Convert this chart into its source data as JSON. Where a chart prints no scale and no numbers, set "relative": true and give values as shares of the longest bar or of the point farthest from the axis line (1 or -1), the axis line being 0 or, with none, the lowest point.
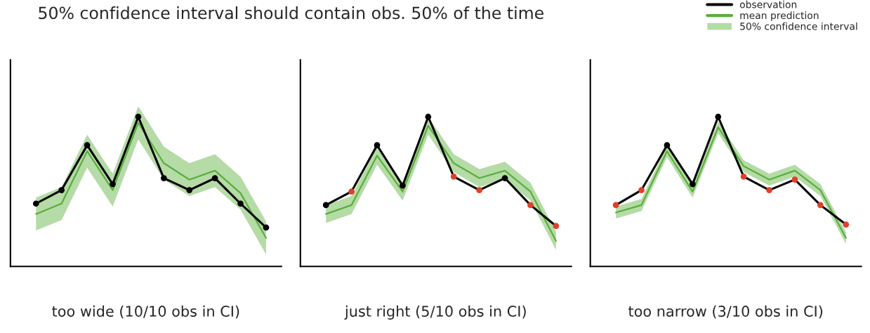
{
  "chart_data": [
    {
      "type": "line",
      "title": "50% confidence interval should contain obs. 50% of the time",
      "xlabel": "too wide (10/10 obs in CI)",
      "relative": true,
      "tick_labels": false,
      "grid": false,
      "categories": [
        null,
        null,
        null,
        null,
        null,
        null,
        null,
        null,
        null,
        null
      ],
      "series": [
        {
          "color": "#5aae3c",
          "values": [
            0.35,
            0.42,
            0.77,
            0.51,
            0.96,
            0.69,
            0.58,
            0.64,
            0.49,
            0.19
          ],
          "lower": [
            0.24,
            0.31,
            0.66,
            0.4,
            0.85,
            0.58,
            0.47,
            0.53,
            0.38,
            0.08
          ],
          "upper": [
            0.46,
            0.53,
            0.88,
            0.62,
            1.07,
            0.8,
            0.69,
            0.75,
            0.6,
            0.3
          ]
        },
        {
          "color": "#000000",
          "marker": "circle",
          "values": [
            0.42,
            0.51,
            0.81,
            0.55,
            1.0,
            0.59,
            0.51,
            0.59,
            0.42,
            0.26
          ],
          "colors": [
            "#000000",
            "#000000",
            "#000000",
            "#000000",
            "#000000",
            "#000000",
            "#000000",
            "#000000",
            "#000000",
            "#000000"
          ]
        }
      ]
    },
    {
      "type": "line",
      "xlabel": "just right (5/10 obs in CI)",
      "relative": true,
      "tick_labels": false,
      "grid": false,
      "categories": [
        null,
        null,
        null,
        null,
        null,
        null,
        null,
        null,
        null,
        null
      ],
      "series": [
        {
          "color": "#5aae3c",
          "values": [
            0.35,
            0.41,
            0.74,
            0.5,
            0.94,
            0.69,
            0.59,
            0.64,
            0.5,
            0.17
          ],
          "lower": [
            0.29,
            0.35,
            0.68,
            0.44,
            0.88,
            0.63,
            0.53,
            0.58,
            0.44,
            0.11
          ],
          "upper": [
            0.41,
            0.47,
            0.8,
            0.56,
            1.0,
            0.75,
            0.65,
            0.7,
            0.56,
            0.23
          ]
        },
        {
          "color": "#000000",
          "marker": "circle",
          "values": [
            0.41,
            0.5,
            0.81,
            0.54,
            1.0,
            0.6,
            0.51,
            0.59,
            0.41,
            0.27
          ],
          "colors": [
            "#000000",
            "#e0402a",
            "#000000",
            "#000000",
            "#000000",
            "#e0402a",
            "#e0402a",
            "#000000",
            "#e0402a",
            "#e0402a"
          ]
        }
      ]
    },
    {
      "type": "line",
      "xlabel": "too narrow (3/10 obs in CI)",
      "relative": true,
      "tick_labels": false,
      "grid": false,
      "legend": "top right",
      "annotations": [
        "50% confidence interval"
      ],
      "categories": [
        null,
        null,
        null,
        null,
        null,
        null,
        null,
        null,
        null,
        null
      ],
      "series": [
        {
          "name": "mean prediction",
          "color": "#5aae3c",
          "values": [
            0.36,
            0.41,
            0.77,
            0.5,
            0.93,
            0.67,
            0.58,
            0.64,
            0.51,
            0.19
          ],
          "lower": [
            0.32,
            0.37,
            0.73,
            0.46,
            0.89,
            0.63,
            0.54,
            0.6,
            0.47,
            0.15
          ],
          "upper": [
            0.4,
            0.45,
            0.81,
            0.54,
            0.97,
            0.71,
            0.62,
            0.68,
            0.55,
            0.23
          ]
        },
        {
          "name": "observation",
          "color": "#000000",
          "marker": "circle",
          "values": [
            0.41,
            0.51,
            0.81,
            0.55,
            1.0,
            0.6,
            0.51,
            0.58,
            0.41,
            0.28
          ],
          "colors": [
            "#e0402a",
            "#e0402a",
            "#000000",
            "#000000",
            "#000000",
            "#e0402a",
            "#e0402a",
            "#e0402a",
            "#e0402a",
            "#e0402a"
          ]
        }
      ]
    }
  ]
}
